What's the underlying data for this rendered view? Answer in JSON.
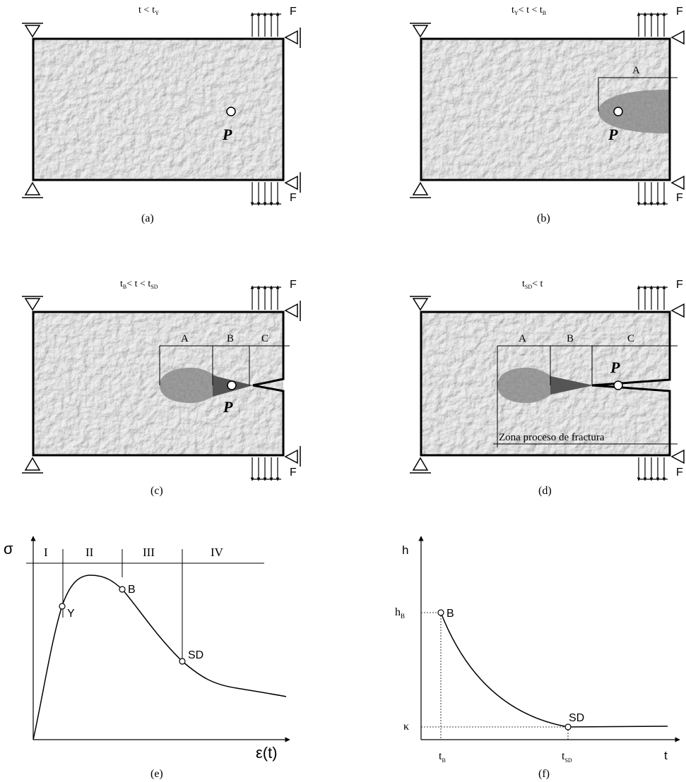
{
  "panels": {
    "a": {
      "caption": "(a)",
      "cond_t": "t <",
      "cond_sub": "t",
      "cond_subsub": "Y",
      "force": "F",
      "point": "P"
    },
    "b": {
      "caption": "(b)",
      "cond_1": "t",
      "cond_1_sub": "Y",
      "cond_mid": "< t < t",
      "cond_2_sub": "B",
      "zone_a": "A",
      "force": "F",
      "point": "P"
    },
    "c": {
      "caption": "(c)",
      "cond_1": "t",
      "cond_1_sub": "B",
      "cond_mid": "< t < t",
      "cond_2_sub": "SD",
      "zone_a": "A",
      "zone_b": "B",
      "zone_c": "C",
      "force": "F",
      "point": "P"
    },
    "d": {
      "caption": "(d)",
      "cond_1": "t",
      "cond_1_sub": "SD",
      "cond_mid": "< t",
      "zone_a": "A",
      "zone_b": "B",
      "zone_c": "C",
      "fpz": "Zona proceso de  fractura",
      "force": "F",
      "point": "P"
    }
  },
  "graph_e": {
    "caption": "(e)",
    "y_axis": "σ",
    "x_axis": "ε(t)",
    "regions": [
      "I",
      "II",
      "III",
      "IV"
    ],
    "points": {
      "y": "Y",
      "b": "B",
      "sd": "SD"
    }
  },
  "graph_f": {
    "caption": "(f)",
    "y_axis": "h",
    "x_axis": "t",
    "y_tick_hb": "h",
    "y_tick_hb_sub": "B",
    "y_tick_kappa": "κ",
    "x_tick_tb": "t",
    "x_tick_tb_sub": "B",
    "x_tick_tsd": "t",
    "x_tick_tsd_sub": "SD",
    "points": {
      "b": "B",
      "sd": "SD"
    }
  },
  "colors": {
    "ink": "#000000",
    "concrete": "#cfcfcf",
    "damage": "#8a8a8a",
    "damage_dark": "#555555"
  }
}
